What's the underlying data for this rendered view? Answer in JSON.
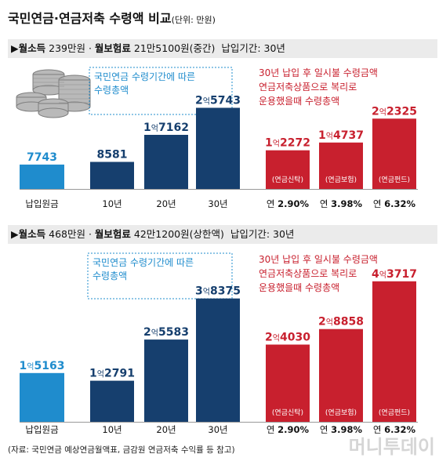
{
  "title": {
    "main": "국민연금·연금저축 수령액 비교",
    "unit": "(단위: 만원)"
  },
  "colors": {
    "blue_light": "#1f8ccd",
    "navy": "#163f6e",
    "red": "#c8202e",
    "red_text": "#c8202e",
    "note_blue": "#1f8ccd"
  },
  "chart_data": [
    {
      "type": "bar",
      "header": {
        "marker": "▶",
        "income": "월소득",
        "income_val": "239만원",
        "dot": " · ",
        "prem": "월보험료",
        "prem_val": "21만5100원(중간)",
        "period": "납입기간: 30년"
      },
      "note_left": [
        "국민연금 수령기간에 따른",
        "수령총액"
      ],
      "note_right": [
        "30년 납입 후 일시불 수령금액",
        "연금저축상품으로 복리로",
        "운용했을때 수령총액"
      ],
      "bars": [
        {
          "cat": "납입원금",
          "value": 7743,
          "label": "7743",
          "group": "base"
        },
        {
          "cat": "10년",
          "value": 8581,
          "label": "8581",
          "group": "pension"
        },
        {
          "cat": "20년",
          "value": 17162,
          "label": "1억7162",
          "group": "pension"
        },
        {
          "cat": "30년",
          "value": 25743,
          "label": "2억5743",
          "group": "pension"
        },
        {
          "cat": "연 2.90%",
          "value": 12272,
          "label": "1억2272",
          "inner": "(연금신탁)",
          "group": "savings"
        },
        {
          "cat": "연 3.98%",
          "value": 14737,
          "label": "1억4737",
          "inner": "(연금보험)",
          "group": "savings"
        },
        {
          "cat": "연 6.32%",
          "value": 22325,
          "label": "2억2325",
          "inner": "(연금펀드)",
          "group": "savings"
        }
      ]
    },
    {
      "type": "bar",
      "header": {
        "marker": "▶",
        "income": "월소득",
        "income_val": "468만원",
        "dot": " · ",
        "prem": "월보험료",
        "prem_val": "42만1200원(상한액)",
        "period": "납입기간: 30년"
      },
      "note_left": [
        "국민연금 수령기간에 따른",
        "수령총액"
      ],
      "note_right": [
        "30년 납입 후 일시불 수령금액",
        "연금저축상품으로 복리로",
        "운용했을때 수령총액"
      ],
      "bars": [
        {
          "cat": "납입원금",
          "value": 15163,
          "label": "1억5163",
          "group": "base"
        },
        {
          "cat": "10년",
          "value": 12791,
          "label": "1억2791",
          "group": "pension"
        },
        {
          "cat": "20년",
          "value": 25583,
          "label": "2억5583",
          "group": "pension"
        },
        {
          "cat": "30년",
          "value": 38375,
          "label": "3억8375",
          "group": "pension"
        },
        {
          "cat": "연 2.90%",
          "value": 24030,
          "label": "2억4030",
          "inner": "(연금신탁)",
          "group": "savings"
        },
        {
          "cat": "연 3.98%",
          "value": 28858,
          "label": "2억8858",
          "inner": "(연금보험)",
          "group": "savings"
        },
        {
          "cat": "연 6.32%",
          "value": 43717,
          "label": "4억3717",
          "inner": "(연금펀드)",
          "group": "savings"
        }
      ]
    }
  ],
  "footer": "(자료: 국민연금 예상연금월액표, 금감원 연금저축 수익률 등 참고)",
  "watermark": "머니투데이"
}
